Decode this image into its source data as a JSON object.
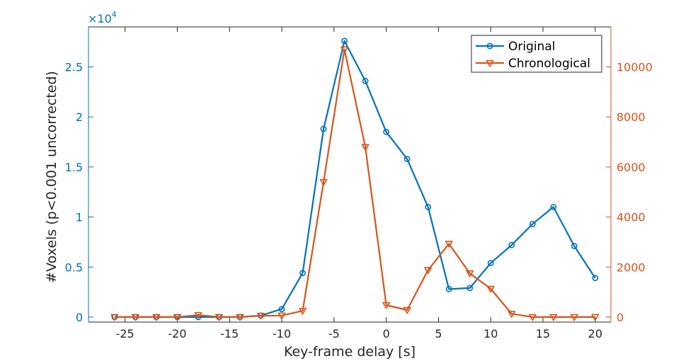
{
  "chart_data": {
    "type": "line",
    "xlabel": "Key-frame delay [s]",
    "ylabel_left": "#Voxels (p<0.001 uncorrected)",
    "xlim": [
      -28.5,
      21.5
    ],
    "x_ticks": [
      -25,
      -20,
      -15,
      -10,
      -5,
      0,
      5,
      10,
      15,
      20
    ],
    "y_left": {
      "lim": [
        -500,
        29000
      ],
      "ticks": [
        0,
        5000,
        10000,
        15000,
        20000,
        25000
      ],
      "tick_labels": [
        "0",
        "0.5",
        "1",
        "1.5",
        "2",
        "2.5"
      ],
      "exponent_base": "×10",
      "exponent_power": "4"
    },
    "y_right": {
      "lim": [
        -200,
        11600
      ],
      "ticks": [
        0,
        2000,
        4000,
        6000,
        8000,
        10000
      ]
    },
    "legend_position": "top-right",
    "grid": false,
    "x": [
      -26,
      -24,
      -22,
      -20,
      -18,
      -16,
      -14,
      -12,
      -10,
      -8,
      -6,
      -4,
      -2,
      0,
      2,
      4,
      6,
      8,
      10,
      12,
      14,
      16,
      18,
      20
    ],
    "series": [
      {
        "name": "Original",
        "axis": "left",
        "color": "#0072BD",
        "marker": "circle",
        "values": [
          0,
          0,
          0,
          0,
          0,
          0,
          0,
          150,
          800,
          4400,
          18800,
          27600,
          23600,
          18500,
          15800,
          11000,
          2800,
          2900,
          5400,
          7200,
          9300,
          11000,
          7100,
          3900
        ]
      },
      {
        "name": "Chronological",
        "axis": "right",
        "color": "#D95319",
        "marker": "triangle-down",
        "values": [
          0,
          0,
          0,
          0,
          80,
          0,
          0,
          50,
          60,
          250,
          5400,
          10700,
          6800,
          480,
          280,
          1880,
          2930,
          1750,
          1130,
          130,
          0,
          0,
          0,
          0
        ]
      }
    ]
  }
}
